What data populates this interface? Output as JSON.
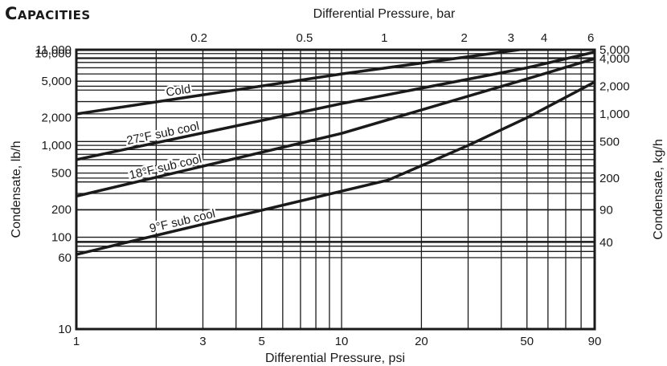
{
  "title": "Capacities",
  "chart_data": {
    "type": "line",
    "x_scale": "log",
    "y_scale": "log",
    "xlim": [
      1,
      90
    ],
    "ylim": [
      10,
      11000
    ],
    "grid": true,
    "xlabel": "Differential Pressure, psi",
    "x2label": "Differential Pressure, bar",
    "ylabel": "Condensate, lb/h",
    "y2label": "Condensate, kg/h",
    "x_ticks": [
      {
        "v": 1,
        "t": "1"
      },
      {
        "v": 3,
        "t": "3"
      },
      {
        "v": 5,
        "t": "5"
      },
      {
        "v": 10,
        "t": "10"
      },
      {
        "v": 20,
        "t": "20"
      },
      {
        "v": 50,
        "t": "50"
      },
      {
        "v": 90,
        "t": "90"
      }
    ],
    "x2_ticks": [
      {
        "v": 2.9,
        "t": "0.2"
      },
      {
        "v": 7.25,
        "t": "0.5"
      },
      {
        "v": 14.5,
        "t": "1"
      },
      {
        "v": 29,
        "t": "2"
      },
      {
        "v": 43.5,
        "t": "3"
      },
      {
        "v": 58,
        "t": "4"
      },
      {
        "v": 87,
        "t": "6"
      }
    ],
    "y_ticks": [
      {
        "v": 10,
        "t": "10"
      },
      {
        "v": 60,
        "t": "60"
      },
      {
        "v": 100,
        "t": "100"
      },
      {
        "v": 200,
        "t": "200"
      },
      {
        "v": 500,
        "t": "500"
      },
      {
        "v": 1000,
        "t": "1,000"
      },
      {
        "v": 2000,
        "t": "2,000"
      },
      {
        "v": 5000,
        "t": "5,000"
      },
      {
        "v": 10000,
        "t": "10,000"
      },
      {
        "v": 11000,
        "t": "11,000"
      }
    ],
    "y2_ticks": [
      {
        "v": 11000,
        "t": "5,000"
      },
      {
        "v": 8818,
        "t": "4,000"
      },
      {
        "v": 4409,
        "t": "2,000"
      },
      {
        "v": 2205,
        "t": "1,000"
      },
      {
        "v": 1102,
        "t": "500"
      },
      {
        "v": 441,
        "t": "200"
      },
      {
        "v": 198,
        "t": "90"
      },
      {
        "v": 88,
        "t": "40"
      }
    ],
    "x_grid": [
      2,
      3,
      4,
      6,
      7,
      8,
      9,
      20,
      30,
      40,
      60,
      70,
      80
    ],
    "y_grid": [
      70,
      80,
      90,
      300,
      400,
      600,
      700,
      800,
      900,
      3000,
      4000,
      6000,
      7000,
      8000,
      9000
    ],
    "series": [
      {
        "name": "Cold",
        "points": [
          [
            1,
            2200
          ],
          [
            10,
            6000
          ],
          [
            50,
            11300
          ],
          [
            90,
            14400
          ]
        ]
      },
      {
        "name": "27°F sub cool",
        "points": [
          [
            1,
            700
          ],
          [
            10,
            2850
          ],
          [
            50,
            7000
          ],
          [
            90,
            10400
          ]
        ]
      },
      {
        "name": "18°F sub cool",
        "points": [
          [
            1,
            280
          ],
          [
            10,
            1350
          ],
          [
            50,
            5300
          ],
          [
            90,
            8800
          ]
        ]
      },
      {
        "name": "9°F sub cool",
        "points": [
          [
            1,
            65
          ],
          [
            15,
            420
          ],
          [
            30,
            1000
          ],
          [
            50,
            2000
          ],
          [
            90,
            4900
          ]
        ]
      }
    ]
  }
}
